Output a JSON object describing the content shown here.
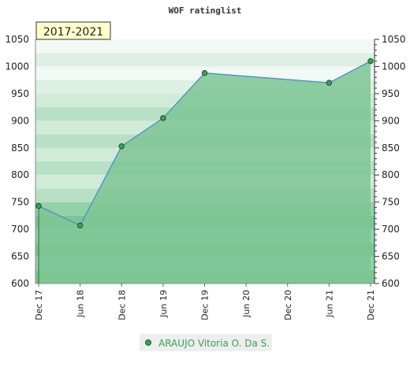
{
  "chart_data": {
    "type": "area",
    "title": "WOF ratinglist",
    "period_label": "2017-2021",
    "xlabel": "",
    "ylabel": "",
    "ylim": [
      600,
      1050
    ],
    "y_ticks": [
      600,
      650,
      700,
      750,
      800,
      850,
      900,
      950,
      1000,
      1050
    ],
    "x_ticks": [
      "Dec 17",
      "Jun 18",
      "Dec 18",
      "Jun 19",
      "Dec 19",
      "Jun 20",
      "Dec 20",
      "Jun 21",
      "Dec 21"
    ],
    "series": [
      {
        "name": "ARAUJO Vitoria O. Da S.",
        "points": [
          {
            "x": "Dec 17",
            "y": 743
          },
          {
            "x": "Jun 18",
            "y": 707
          },
          {
            "x": "Dec 18",
            "y": 853
          },
          {
            "x": "Jun 19",
            "y": 905
          },
          {
            "x": "Dec 19",
            "y": 988
          },
          {
            "x": "Jun 21",
            "y": 970
          },
          {
            "x": "Dec 21",
            "y": 1010
          }
        ]
      }
    ],
    "grid": true,
    "legend_position": "bottom"
  },
  "colors": {
    "line": "#4a90c8",
    "area": "#7cc594",
    "marker": "#3aa05a",
    "legend_text": "#3aa05a",
    "legend_bg": "#eeeeee",
    "label_bg": "#ffffcc"
  }
}
